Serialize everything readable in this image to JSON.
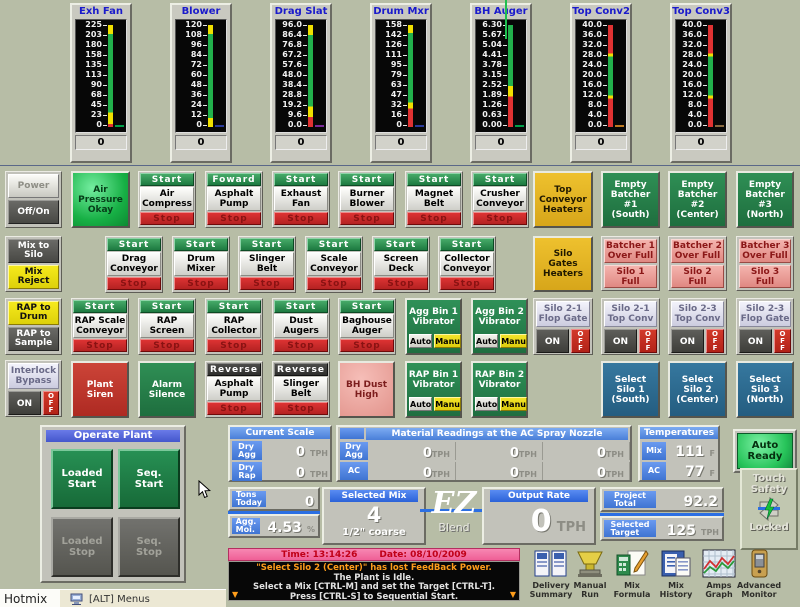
{
  "common": {
    "start": "Start",
    "forward": "Foward",
    "reverse": "Reverse",
    "stop": "Stop",
    "auto": "Auto",
    "manu": "Manu",
    "on": "ON",
    "off": "O\nF\nF"
  },
  "gauges": {
    "items": [
      {
        "name": "Exh Fan",
        "value": "0",
        "ticks": [
          "225",
          "203",
          "180",
          "158",
          "135",
          "113",
          "90",
          "68",
          "45",
          "23",
          "0"
        ],
        "segments": [
          {
            "c": "#f0e000",
            "from": 0,
            "to": 9
          },
          {
            "c": "#22b14c",
            "from": 9,
            "to": 86
          },
          {
            "c": "#f0e000",
            "from": 86,
            "to": 97
          },
          {
            "c": "#e03232",
            "from": 97,
            "to": 100
          }
        ],
        "marker": "#00a04a"
      },
      {
        "name": "Blower",
        "value": "0",
        "ticks": [
          "120",
          "108",
          "96",
          "84",
          "72",
          "60",
          "48",
          "36",
          "24",
          "12",
          "0"
        ],
        "segments": [
          {
            "c": "#f0e000",
            "from": 0,
            "to": 9
          },
          {
            "c": "#22b14c",
            "from": 9,
            "to": 91
          },
          {
            "c": "#f0e000",
            "from": 91,
            "to": 100
          }
        ],
        "marker": "#2a3a9a"
      },
      {
        "name": "Drag Slat",
        "value": "0",
        "ticks": [
          "96.0",
          "86.4",
          "76.8",
          "67.2",
          "57.6",
          "48.0",
          "38.4",
          "28.8",
          "19.2",
          "9.6",
          "0.0"
        ],
        "segments": [
          {
            "c": "#f0e000",
            "from": 0,
            "to": 10
          },
          {
            "c": "#22b14c",
            "from": 10,
            "to": 80
          },
          {
            "c": "#f0e000",
            "from": 80,
            "to": 90
          },
          {
            "c": "#e03232",
            "from": 90,
            "to": 100
          }
        ],
        "marker": "#7a2a9a"
      },
      {
        "name": "Drum Mxr",
        "value": "0",
        "ticks": [
          "158",
          "142",
          "126",
          "111",
          "95",
          "79",
          "63",
          "47",
          "32",
          "16",
          "0"
        ],
        "segments": [
          {
            "c": "#f0e000",
            "from": 0,
            "to": 8
          },
          {
            "c": "#22b14c",
            "from": 8,
            "to": 76
          },
          {
            "c": "#f0e000",
            "from": 76,
            "to": 82
          },
          {
            "c": "#e03232",
            "from": 82,
            "to": 100
          }
        ],
        "marker": "#2a3a9a"
      },
      {
        "name": "BH Auger",
        "value": "0",
        "ticks": [
          "6.30",
          "5.67",
          "5.04",
          "4.41",
          "3.78",
          "3.15",
          "2.52",
          "1.89",
          "1.26",
          "0.63",
          "0.00"
        ],
        "segments": [
          {
            "c": "#22b14c",
            "from": 0,
            "to": 60
          },
          {
            "c": "#f0e000",
            "from": 60,
            "to": 70
          },
          {
            "c": "#e03232",
            "from": 70,
            "to": 100
          }
        ],
        "marker": "#00a04a"
      },
      {
        "name": "Top Conv2",
        "value": "0",
        "ticks": [
          "40.0",
          "36.0",
          "32.0",
          "28.0",
          "24.0",
          "20.0",
          "16.0",
          "12.0",
          "8.0",
          "4.0",
          "0.0"
        ],
        "segments": [
          {
            "c": "#e03232",
            "from": 0,
            "to": 28
          },
          {
            "c": "#f0e000",
            "from": 28,
            "to": 31
          },
          {
            "c": "#22b14c",
            "from": 31,
            "to": 69
          },
          {
            "c": "#f0e000",
            "from": 69,
            "to": 72
          },
          {
            "c": "#e03232",
            "from": 72,
            "to": 100
          }
        ],
        "marker": "#c07a20"
      },
      {
        "name": "Top Conv3",
        "value": "0",
        "ticks": [
          "40.0",
          "36.0",
          "32.0",
          "28.0",
          "24.0",
          "20.0",
          "16.0",
          "12.0",
          "8.0",
          "4.0",
          "0.0"
        ],
        "segments": [
          {
            "c": "#e03232",
            "from": 0,
            "to": 28
          },
          {
            "c": "#f0e000",
            "from": 28,
            "to": 31
          },
          {
            "c": "#22b14c",
            "from": 31,
            "to": 69
          },
          {
            "c": "#f0e000",
            "from": 69,
            "to": 72
          },
          {
            "c": "#e03232",
            "from": 72,
            "to": 100
          }
        ],
        "marker": "#8a6a40"
      }
    ]
  },
  "motor_buttons": [
    {
      "top": "start",
      "label": "Air\nCompress"
    },
    {
      "top": "forward",
      "label": "Asphalt\nPump"
    },
    {
      "top": "start",
      "label": "Exhaust\nFan"
    },
    {
      "top": "start",
      "label": "Burner\nBlower"
    },
    {
      "top": "start",
      "label": "Magnet\nBelt"
    },
    {
      "top": "start",
      "label": "Crusher\nConveyor"
    },
    {
      "top": "start",
      "label": "Drag\nConveyor"
    },
    {
      "top": "start",
      "label": "Drum\nMixer"
    },
    {
      "top": "start",
      "label": "Slinger\nBelt"
    },
    {
      "top": "start",
      "label": "Scale\nConveyor"
    },
    {
      "top": "start",
      "label": "Screen\nDeck"
    },
    {
      "top": "start",
      "label": "Collector\nConveyor"
    },
    {
      "top": "start",
      "label": "RAP Scale\nConveyor"
    },
    {
      "top": "start",
      "label": "RAP\nScreen"
    },
    {
      "top": "start",
      "label": "RAP\nCollector"
    },
    {
      "top": "start",
      "label": "Dust\nAugers"
    },
    {
      "top": "start",
      "label": "Baghouse\nAuger"
    },
    {
      "top": "reverse",
      "label": "Asphalt\nPump"
    },
    {
      "top": "reverse",
      "label": "Slinger\nBelt"
    }
  ],
  "vibrators": [
    "Agg Bin 1\nVibrator",
    "Agg Bin 2\nVibrator",
    "RAP Bin 1\nVibrator",
    "RAP Bin 2\nVibrator"
  ],
  "plant_buttons": {
    "air_pressure": "Air\nPressure\nOkay",
    "plant_siren": "Plant\nSiren",
    "alarm_silence": "Alarm\nSilence",
    "bh_dust_high": "BH Dust\nHigh",
    "top_conveyor_heaters": "Top\nConveyor\nHeaters",
    "silo_gates_heaters": "Silo\nGates\nHeaters"
  },
  "empty_batchers": [
    "Empty\nBatcher\n#1\n(South)",
    "Empty\nBatcher\n#2\n(Center)",
    "Empty\nBatcher\n#3\n(North)"
  ],
  "batcher_full": [
    {
      "over": "Batcher 1\nOver Full",
      "full": "Silo 1\nFull"
    },
    {
      "over": "Batcher 2\nOver Full",
      "full": "Silo 2\nFull"
    },
    {
      "over": "Batcher 3\nOver Full",
      "full": "Silo 3\nFull"
    }
  ],
  "flop_gates": [
    "Silo 2-1\nFlop Gate",
    "Silo 2-1\nTop Conv",
    "Silo 2-3\nTop Conv",
    "Silo 2-3\nFlop Gate"
  ],
  "select_silos": [
    "Select\nSilo 1\n(South)",
    "Select\nSilo 2\n(Center)",
    "Select\nSilo 3\n(North)"
  ],
  "left_controls": {
    "power": "Power",
    "off_on": "Off/On",
    "mix_to_silo": "Mix to\nSilo",
    "mix_reject": "Mix\nReject",
    "rap_to_drum": "RAP to\nDrum",
    "rap_to_sample": "RAP to\nSample",
    "interlock": "Interlock\nBypass"
  },
  "operate": {
    "title": "Operate Plant",
    "loaded_start": "Loaded\nStart",
    "seq_start": "Seq.\nStart",
    "loaded_stop": "Loaded\nStop",
    "seq_stop": "Seq.\nStop"
  },
  "readouts": {
    "current_scale": {
      "title": "Current Scale",
      "rows": [
        {
          "label": "Dry\nAgg",
          "value": "0",
          "unit": "TPH"
        },
        {
          "label": "Dry\nRap",
          "value": "0",
          "unit": "TPH"
        }
      ]
    },
    "material": {
      "title": "Material Readings at the AC Spray Nozzle",
      "rows": [
        {
          "label": "Dry\nAgg",
          "values": [
            "0",
            "0",
            "0"
          ],
          "unit": "TPH"
        },
        {
          "label": "AC",
          "values": [
            "0",
            "0",
            "0"
          ],
          "unit": "TPH"
        }
      ]
    },
    "temperatures": {
      "title": "Temperatures",
      "rows": [
        {
          "label": "Mix",
          "value": "111",
          "unit": "F"
        },
        {
          "label": "AC",
          "value": "77",
          "unit": "F"
        }
      ]
    },
    "auto_ready": "Auto\nReady",
    "touch_safety": {
      "label": "Touch\nSafety",
      "locked": "Locked"
    },
    "tons_today": {
      "label": "Tons\nToday",
      "value": "0"
    },
    "agg_moi": {
      "label": "Agg.\nMoi.",
      "value": "4.53",
      "unit": "%"
    },
    "selected_mix": {
      "title": "Selected Mix",
      "value": "4",
      "desc": "1/2\" coarse"
    },
    "ez": {
      "big": "EZ",
      "small": "Blend"
    },
    "output_rate": {
      "title": "Output Rate",
      "value": "0",
      "unit": "TPH"
    },
    "project_total": {
      "label": "Project\nTotal",
      "value": "92.2"
    },
    "selected_target": {
      "label": "Selected\nTarget",
      "value": "125",
      "unit": "TPH"
    }
  },
  "status": {
    "time_label": "Time: 13:14:26",
    "date_label": "Date: 08/10/2009",
    "messages": [
      "\"Select Silo 2 (Center)\" has lost FeedBack Power.",
      "The Plant is Idle.",
      "Select a Mix [CTRL-M] and set the Target [CTRL-T].",
      "Press [CTRL-S] to Sequential Start."
    ],
    "scroll_arrow": "▼"
  },
  "taskbar": {
    "app": "Hotmix",
    "menus": "[ALT] Menus"
  },
  "shortcuts": [
    {
      "label": "Delivery\nSummary",
      "icon": "delivery-summary"
    },
    {
      "label": "Manual\nRun",
      "icon": "manual-run"
    },
    {
      "label": "Mix\nFormula",
      "icon": "mix-formula"
    },
    {
      "label": "Mix\nHistory",
      "icon": "mix-history"
    },
    {
      "label": "Amps\nGraph",
      "icon": "amps-graph"
    },
    {
      "label": "Advanced\nMonitor",
      "icon": "advanced-monitor"
    }
  ]
}
